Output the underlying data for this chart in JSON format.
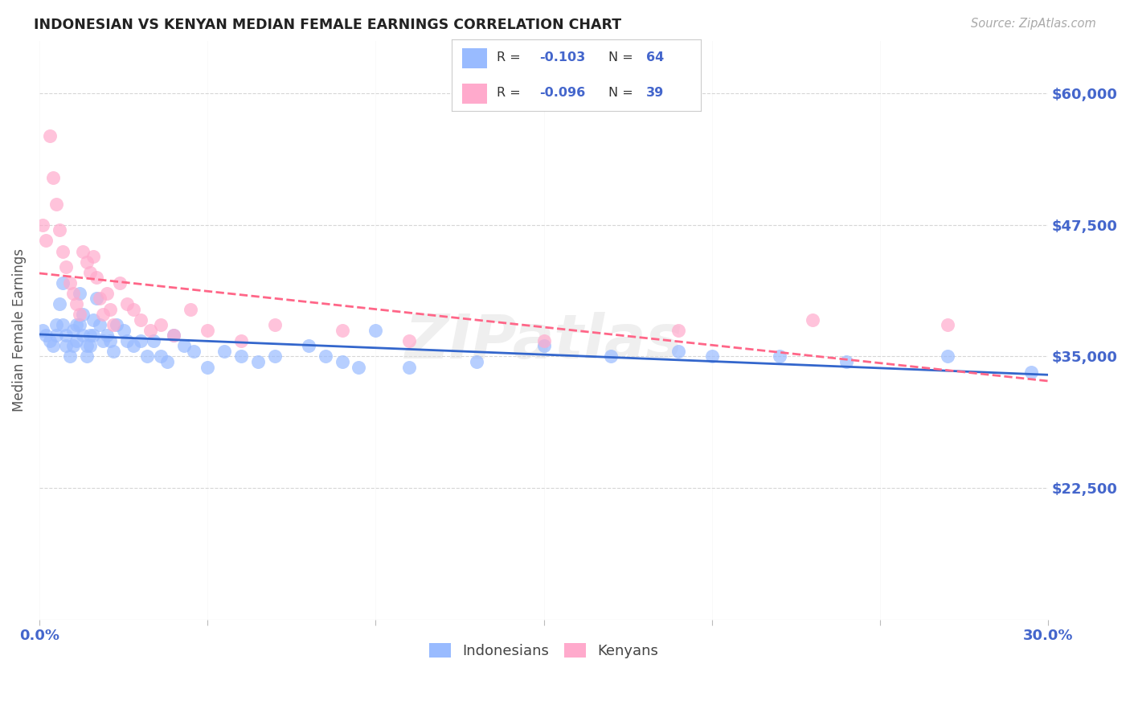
{
  "title": "INDONESIAN VS KENYAN MEDIAN FEMALE EARNINGS CORRELATION CHART",
  "source": "Source: ZipAtlas.com",
  "ylabel": "Median Female Earnings",
  "xlim": [
    0.0,
    0.3
  ],
  "ylim": [
    10000,
    65000
  ],
  "yticks": [
    22500,
    35000,
    47500,
    60000
  ],
  "ytick_labels": [
    "$22,500",
    "$35,000",
    "$47,500",
    "$60,000"
  ],
  "xticks": [
    0.0,
    0.05,
    0.1,
    0.15,
    0.2,
    0.25,
    0.3
  ],
  "xtick_labels": [
    "0.0%",
    "",
    "",
    "",
    "",
    "",
    "30.0%"
  ],
  "background_color": "#ffffff",
  "grid_color": "#cccccc",
  "blue_color": "#99bbff",
  "pink_color": "#ffaacc",
  "blue_line_color": "#3366cc",
  "pink_line_color": "#ff6688",
  "axis_label_color": "#4466cc",
  "watermark": "ZIPatlas",
  "indonesian_x": [
    0.001,
    0.002,
    0.003,
    0.004,
    0.005,
    0.005,
    0.006,
    0.007,
    0.007,
    0.008,
    0.008,
    0.009,
    0.01,
    0.01,
    0.011,
    0.011,
    0.012,
    0.012,
    0.013,
    0.013,
    0.014,
    0.014,
    0.015,
    0.015,
    0.016,
    0.016,
    0.017,
    0.018,
    0.019,
    0.02,
    0.021,
    0.022,
    0.023,
    0.025,
    0.026,
    0.028,
    0.03,
    0.032,
    0.034,
    0.036,
    0.038,
    0.04,
    0.043,
    0.046,
    0.05,
    0.055,
    0.06,
    0.065,
    0.07,
    0.08,
    0.085,
    0.09,
    0.095,
    0.1,
    0.11,
    0.13,
    0.15,
    0.17,
    0.19,
    0.2,
    0.22,
    0.24,
    0.27,
    0.295
  ],
  "indonesian_y": [
    37500,
    37000,
    36500,
    36000,
    38000,
    37000,
    40000,
    42000,
    38000,
    37000,
    36000,
    35000,
    37500,
    36000,
    38000,
    36500,
    41000,
    38000,
    39000,
    37000,
    36000,
    35000,
    37000,
    36000,
    38500,
    37000,
    40500,
    38000,
    36500,
    37000,
    36500,
    35500,
    38000,
    37500,
    36500,
    36000,
    36500,
    35000,
    36500,
    35000,
    34500,
    37000,
    36000,
    35500,
    34000,
    35500,
    35000,
    34500,
    35000,
    36000,
    35000,
    34500,
    34000,
    37500,
    34000,
    34500,
    36000,
    35000,
    35500,
    35000,
    35000,
    34500,
    35000,
    33500
  ],
  "kenyan_x": [
    0.001,
    0.002,
    0.003,
    0.004,
    0.005,
    0.006,
    0.007,
    0.008,
    0.009,
    0.01,
    0.011,
    0.012,
    0.013,
    0.014,
    0.015,
    0.016,
    0.017,
    0.018,
    0.019,
    0.02,
    0.021,
    0.022,
    0.024,
    0.026,
    0.028,
    0.03,
    0.033,
    0.036,
    0.04,
    0.045,
    0.05,
    0.06,
    0.07,
    0.09,
    0.11,
    0.15,
    0.19,
    0.23,
    0.27
  ],
  "kenyan_y": [
    47500,
    46000,
    56000,
    52000,
    49500,
    47000,
    45000,
    43500,
    42000,
    41000,
    40000,
    39000,
    45000,
    44000,
    43000,
    44500,
    42500,
    40500,
    39000,
    41000,
    39500,
    38000,
    42000,
    40000,
    39500,
    38500,
    37500,
    38000,
    37000,
    39500,
    37500,
    36500,
    38000,
    37500,
    36500,
    36500,
    37500,
    38500,
    38000
  ]
}
